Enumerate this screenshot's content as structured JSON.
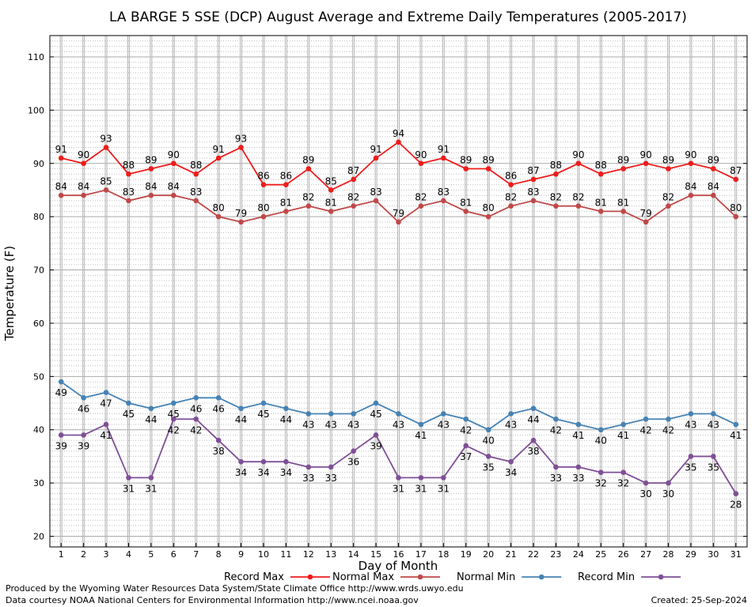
{
  "chart_data": {
    "type": "line",
    "title": "LA BARGE 5 SSE (DCP) August Average and Extreme Daily Temperatures (2005-2017)",
    "xlabel": "Day of Month",
    "ylabel": "Temperature (F)",
    "xlim": [
      0.5,
      31.5
    ],
    "ylim": [
      18,
      114
    ],
    "yticks": [
      20,
      30,
      40,
      50,
      60,
      70,
      80,
      90,
      100,
      110
    ],
    "x": [
      1,
      2,
      3,
      4,
      5,
      6,
      7,
      8,
      9,
      10,
      11,
      12,
      13,
      14,
      15,
      16,
      17,
      18,
      19,
      20,
      21,
      22,
      23,
      24,
      25,
      26,
      27,
      28,
      29,
      30,
      31
    ],
    "grid": true,
    "legend_position": "bottom",
    "series": [
      {
        "name": "Record Max",
        "color": "#ee1c1c",
        "label_position": "above",
        "values": [
          91,
          90,
          93,
          88,
          89,
          90,
          88,
          91,
          93,
          86,
          86,
          89,
          85,
          87,
          91,
          94,
          90,
          91,
          89,
          89,
          86,
          87,
          88,
          90,
          88,
          89,
          90,
          89,
          90,
          89,
          87
        ]
      },
      {
        "name": "Normal Max",
        "color": "#c04848",
        "label_position": "above",
        "values": [
          84,
          84,
          85,
          83,
          84,
          84,
          83,
          80,
          79,
          80,
          81,
          82,
          81,
          82,
          83,
          79,
          82,
          83,
          81,
          80,
          82,
          83,
          82,
          82,
          81,
          81,
          79,
          82,
          84,
          84,
          80
        ]
      },
      {
        "name": "Normal Min",
        "color": "#4682b4",
        "label_position": "below",
        "values": [
          49,
          46,
          47,
          45,
          44,
          45,
          46,
          46,
          44,
          45,
          44,
          43,
          43,
          43,
          45,
          43,
          41,
          43,
          42,
          40,
          43,
          44,
          42,
          41,
          40,
          41,
          42,
          42,
          43,
          43,
          41
        ]
      },
      {
        "name": "Record Min",
        "color": "#7f4f96",
        "label_position": "below",
        "values": [
          39,
          39,
          41,
          31,
          31,
          42,
          42,
          38,
          34,
          34,
          34,
          33,
          33,
          36,
          39,
          31,
          31,
          31,
          37,
          35,
          34,
          38,
          33,
          33,
          32,
          32,
          30,
          30,
          35,
          35,
          28
        ]
      }
    ]
  },
  "footer": {
    "produced_by": "Produced by the Wyoming Water Resources Data System/State Climate Office http://www.wrds.uwyo.edu",
    "courtesy": "Data courtesy NOAA National Centers for Environmental Information http://www.ncei.noaa.gov",
    "created": "Created:  25-Sep-2024"
  }
}
